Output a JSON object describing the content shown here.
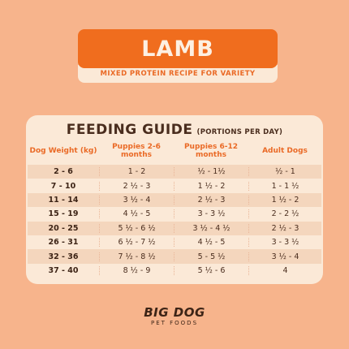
{
  "header": {
    "title": "LAMB",
    "subtitle": "MIXED PROTEIN RECIPE FOR VARIETY"
  },
  "guide": {
    "title": "FEEDING GUIDE",
    "note": "(PORTIONS PER DAY)",
    "columns": [
      "Dog Weight (kg)",
      "Puppies 2-6 months",
      "Puppies 6-12 months",
      "Adult Dogs"
    ],
    "rows": [
      [
        "2 - 6",
        "1 - 2",
        "½ - 1½",
        "½ - 1"
      ],
      [
        "7 - 10",
        "2 ½ - 3",
        "1 ½ - 2",
        "1 - 1 ½"
      ],
      [
        "11 - 14",
        "3 ½ - 4",
        "2 ½ - 3",
        "1 ½ - 2"
      ],
      [
        "15 - 19",
        "4 ½ - 5",
        "3 - 3 ½",
        "2 - 2 ½"
      ],
      [
        "20 - 25",
        "5 ½ - 6 ½",
        "3 ½ - 4 ½",
        "2 ½ - 3"
      ],
      [
        "26 - 31",
        "6 ½ - 7 ½",
        "4 ½ - 5",
        "3 - 3 ½"
      ],
      [
        "32 - 36",
        "7 ½ - 8 ½",
        "5 - 5 ½",
        "3 ½ - 4"
      ],
      [
        "37 - 40",
        "8 ½ - 9",
        "5 ½ - 6",
        "4"
      ]
    ]
  },
  "brand": {
    "name": "BIG DOG",
    "tagline": "PET FOODS"
  },
  "colors": {
    "background": "#f7b48c",
    "accent": "#f06d1e",
    "card": "#fbe9d7",
    "text_dark": "#4a2d1e"
  }
}
